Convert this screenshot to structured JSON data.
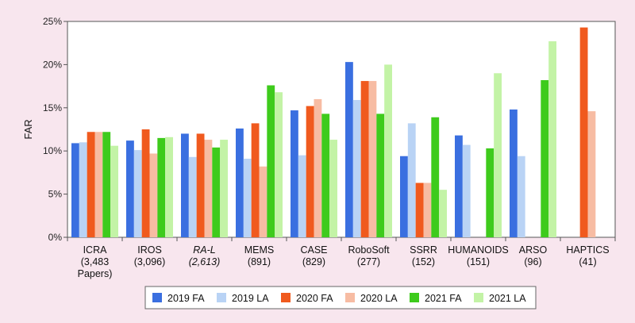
{
  "chart_data": {
    "type": "bar",
    "ylabel": "FAR",
    "ylim": [
      0,
      25
    ],
    "yticks": [
      "0%",
      "5%",
      "10%",
      "15%",
      "20%",
      "25%"
    ],
    "grid": false,
    "legend_position": "bottom",
    "categories": [
      {
        "lines": [
          "ICRA",
          "(3,483",
          "Papers)"
        ],
        "italic": false
      },
      {
        "lines": [
          "IROS",
          "(3,096)"
        ],
        "italic": false
      },
      {
        "lines": [
          "RA-L",
          "(2,613)"
        ],
        "italic": true
      },
      {
        "lines": [
          "MEMS",
          "(891)"
        ],
        "italic": false
      },
      {
        "lines": [
          "CASE",
          "(829)"
        ],
        "italic": false
      },
      {
        "lines": [
          "RoboSoft",
          "(277)"
        ],
        "italic": false
      },
      {
        "lines": [
          "SSRR",
          "(152)"
        ],
        "italic": false
      },
      {
        "lines": [
          "HUMANOIDS",
          "(151)"
        ],
        "italic": false
      },
      {
        "lines": [
          "ARSO",
          "(96)"
        ],
        "italic": false
      },
      {
        "lines": [
          "HAPTICS",
          "(41)"
        ],
        "italic": false
      }
    ],
    "series": [
      {
        "name": "2019 FA",
        "color": "#3a6fe0",
        "values": [
          10.9,
          11.2,
          12.0,
          12.6,
          14.7,
          20.3,
          9.4,
          11.8,
          14.8,
          null
        ]
      },
      {
        "name": "2019 LA",
        "color": "#b9d3f5",
        "values": [
          11.0,
          10.1,
          9.3,
          9.1,
          9.5,
          15.9,
          13.2,
          10.7,
          9.4,
          null
        ]
      },
      {
        "name": "2020 FA",
        "color": "#f05a1e",
        "values": [
          12.2,
          12.5,
          12.0,
          13.2,
          15.2,
          18.1,
          6.3,
          null,
          null,
          24.3
        ]
      },
      {
        "name": "2020 LA",
        "color": "#f7bca3",
        "values": [
          12.2,
          9.7,
          11.3,
          8.2,
          16.0,
          18.1,
          6.3,
          null,
          null,
          14.6
        ]
      },
      {
        "name": "2021 FA",
        "color": "#3ecb1c",
        "values": [
          12.2,
          11.5,
          10.4,
          17.6,
          14.3,
          14.3,
          13.9,
          10.3,
          18.2,
          null
        ]
      },
      {
        "name": "2021 LA",
        "color": "#c3f3a6",
        "values": [
          10.6,
          11.6,
          11.3,
          16.8,
          11.3,
          20.0,
          5.5,
          19.0,
          22.7,
          null
        ]
      }
    ]
  }
}
